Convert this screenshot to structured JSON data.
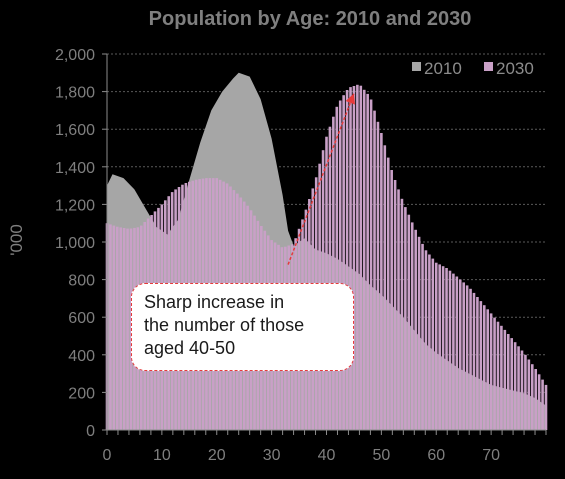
{
  "chart_data": {
    "type": "area",
    "title": "Population by Age: 2010 and 2030",
    "ylabel": "'000",
    "xlabel": "",
    "xlim": [
      0,
      80
    ],
    "ylim": [
      0,
      2000
    ],
    "x_ticks": [
      "0",
      "10",
      "20",
      "30",
      "40",
      "50",
      "60",
      "70"
    ],
    "y_ticks": [
      "0",
      "200",
      "400",
      "600",
      "800",
      "1,000",
      "1,200",
      "1,400",
      "1,600",
      "1,800",
      "2,000"
    ],
    "grid": true,
    "legend_position": "top-right",
    "series": [
      {
        "name": "2010",
        "color": "#a6a6a6",
        "render": "filled-area",
        "points": [
          [
            0,
            1300
          ],
          [
            1,
            1360
          ],
          [
            3,
            1340
          ],
          [
            5,
            1280
          ],
          [
            7,
            1180
          ],
          [
            9,
            1080
          ],
          [
            11,
            1040
          ],
          [
            13,
            1120
          ],
          [
            15,
            1330
          ],
          [
            17,
            1530
          ],
          [
            19,
            1700
          ],
          [
            21,
            1800
          ],
          [
            23,
            1870
          ],
          [
            24,
            1900
          ],
          [
            26,
            1880
          ],
          [
            28,
            1760
          ],
          [
            30,
            1550
          ],
          [
            32,
            1250
          ],
          [
            33,
            1060
          ],
          [
            34,
            980
          ],
          [
            35,
            1000
          ],
          [
            36,
            1020
          ],
          [
            38,
            960
          ],
          [
            40,
            940
          ],
          [
            42,
            910
          ],
          [
            44,
            870
          ],
          [
            46,
            830
          ],
          [
            48,
            770
          ],
          [
            50,
            720
          ],
          [
            52,
            660
          ],
          [
            54,
            600
          ],
          [
            56,
            530
          ],
          [
            58,
            460
          ],
          [
            60,
            410
          ],
          [
            62,
            370
          ],
          [
            64,
            330
          ],
          [
            66,
            300
          ],
          [
            68,
            270
          ],
          [
            70,
            240
          ],
          [
            72,
            225
          ],
          [
            74,
            210
          ],
          [
            76,
            195
          ],
          [
            78,
            170
          ],
          [
            80,
            130
          ]
        ]
      },
      {
        "name": "2030",
        "color": "#c9a0c7",
        "render": "bars",
        "points": [
          [
            0,
            1100
          ],
          [
            2,
            1080
          ],
          [
            4,
            1070
          ],
          [
            6,
            1080
          ],
          [
            8,
            1140
          ],
          [
            10,
            1200
          ],
          [
            12,
            1270
          ],
          [
            14,
            1310
          ],
          [
            16,
            1330
          ],
          [
            18,
            1340
          ],
          [
            20,
            1340
          ],
          [
            22,
            1310
          ],
          [
            24,
            1250
          ],
          [
            26,
            1180
          ],
          [
            28,
            1090
          ],
          [
            30,
            1010
          ],
          [
            32,
            970
          ],
          [
            34,
            990
          ],
          [
            36,
            1150
          ],
          [
            38,
            1330
          ],
          [
            40,
            1560
          ],
          [
            42,
            1730
          ],
          [
            44,
            1820
          ],
          [
            46,
            1840
          ],
          [
            48,
            1770
          ],
          [
            50,
            1580
          ],
          [
            52,
            1370
          ],
          [
            54,
            1210
          ],
          [
            56,
            1080
          ],
          [
            58,
            960
          ],
          [
            60,
            890
          ],
          [
            62,
            860
          ],
          [
            64,
            810
          ],
          [
            66,
            760
          ],
          [
            68,
            690
          ],
          [
            70,
            620
          ],
          [
            72,
            550
          ],
          [
            74,
            480
          ],
          [
            76,
            410
          ],
          [
            78,
            330
          ],
          [
            80,
            240
          ]
        ]
      }
    ],
    "annotation": {
      "lines": [
        "Sharp increase in",
        "the number of those",
        "aged 40-50"
      ],
      "arrow_from": [
        33,
        880
      ],
      "arrow_to": [
        45,
        1790
      ],
      "arrow_color": "#e53a3a"
    }
  }
}
